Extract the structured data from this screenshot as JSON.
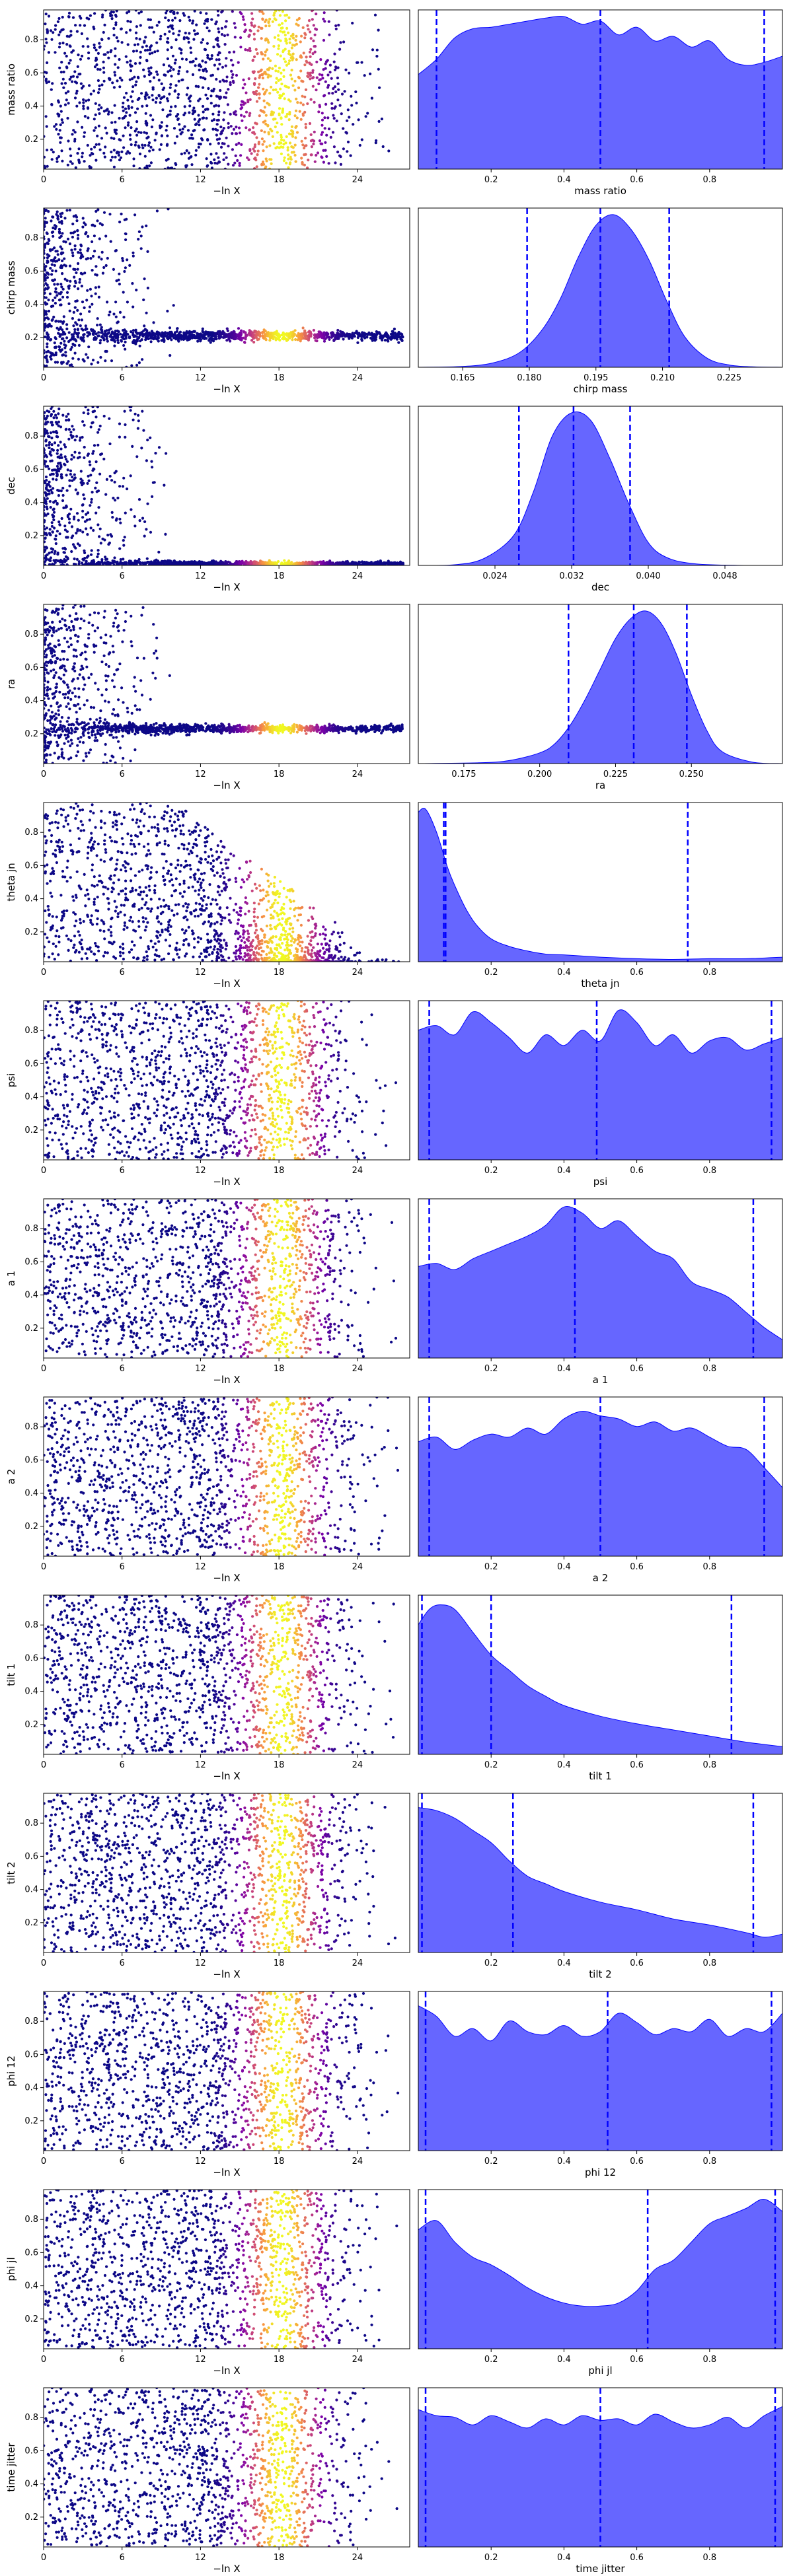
{
  "figure": {
    "trace_xlabel": "−ln X",
    "trace_xticks": [
      "0",
      "6",
      "12",
      "18",
      "24"
    ],
    "trace_yticks": [
      "0.2",
      "0.4",
      "0.6",
      "0.8"
    ],
    "colormap": [
      "#0d0887",
      "#7e03a8",
      "#cc4778",
      "#f89540",
      "#f0f921"
    ],
    "fill_color": "#6666ff",
    "edge_color": "#0000ff",
    "quantile_line_color": "#0000ff"
  },
  "chart_data": [
    {
      "type": "scatter+kde",
      "param": "mass ratio",
      "trace_style": "uniform",
      "kde_xlabel": "mass ratio",
      "kde_xlim": [
        0,
        1
      ],
      "kde_xticks": [
        "0.2",
        "0.4",
        "0.6",
        "0.8"
      ],
      "kde_x": [
        0,
        0.05,
        0.1,
        0.15,
        0.2,
        0.25,
        0.3,
        0.35,
        0.4,
        0.45,
        0.5,
        0.55,
        0.6,
        0.65,
        0.7,
        0.75,
        0.8,
        0.85,
        0.9,
        0.95,
        1.0
      ],
      "kde_y": [
        0.62,
        0.72,
        0.86,
        0.92,
        0.93,
        0.95,
        0.97,
        0.99,
        1.0,
        0.95,
        0.97,
        0.88,
        0.93,
        0.84,
        0.87,
        0.8,
        0.84,
        0.72,
        0.68,
        0.7,
        0.74
      ],
      "quantiles": [
        0.05,
        0.5,
        0.95
      ]
    },
    {
      "type": "scatter+kde",
      "param": "chirp mass",
      "trace_style": "converge",
      "trace_center": 0.21,
      "trace_width": 0.04,
      "kde_xlabel": "chirp mass",
      "kde_xlim": [
        0.155,
        0.237
      ],
      "kde_xticks": [
        "0.165",
        "0.180",
        "0.195",
        "0.210",
        "0.225"
      ],
      "kde_x": [
        0.155,
        0.165,
        0.172,
        0.178,
        0.183,
        0.187,
        0.191,
        0.195,
        0.199,
        0.203,
        0.207,
        0.211,
        0.215,
        0.22,
        0.225,
        0.23,
        0.237
      ],
      "kde_y": [
        0,
        0.005,
        0.03,
        0.1,
        0.25,
        0.45,
        0.72,
        0.93,
        1.0,
        0.9,
        0.7,
        0.43,
        0.2,
        0.06,
        0.015,
        0.003,
        0
      ],
      "quantiles": [
        0.1795,
        0.196,
        0.2115
      ]
    },
    {
      "type": "scatter+kde",
      "param": "dec",
      "trace_style": "converge",
      "trace_center": 0.03,
      "trace_width": 0.02,
      "kde_xlabel": "dec",
      "kde_xlim": [
        0.016,
        0.054
      ],
      "kde_xticks": [
        "0.024",
        "0.032",
        "0.040",
        "0.048"
      ],
      "kde_x": [
        0.016,
        0.02,
        0.023,
        0.026,
        0.028,
        0.03,
        0.032,
        0.034,
        0.036,
        0.038,
        0.04,
        0.042,
        0.045,
        0.05,
        0.054
      ],
      "kde_y": [
        0,
        0.005,
        0.05,
        0.2,
        0.48,
        0.85,
        1.0,
        0.95,
        0.7,
        0.4,
        0.15,
        0.05,
        0.01,
        0,
        0
      ],
      "quantiles": [
        0.0265,
        0.0322,
        0.0381
      ]
    },
    {
      "type": "scatter+kde",
      "param": "ra",
      "trace_style": "converge",
      "trace_center": 0.23,
      "trace_width": 0.03,
      "kde_xlabel": "ra",
      "kde_xlim": [
        0.16,
        0.28
      ],
      "kde_xticks": [
        "0.175",
        "0.200",
        "0.225",
        "0.250"
      ],
      "kde_x": [
        0.16,
        0.18,
        0.19,
        0.2,
        0.205,
        0.21,
        0.215,
        0.22,
        0.225,
        0.23,
        0.235,
        0.24,
        0.245,
        0.25,
        0.255,
        0.26,
        0.27,
        0.28
      ],
      "kde_y": [
        0,
        0.005,
        0.02,
        0.07,
        0.13,
        0.25,
        0.42,
        0.62,
        0.82,
        0.95,
        1.0,
        0.92,
        0.72,
        0.45,
        0.22,
        0.08,
        0.01,
        0
      ],
      "quantiles": [
        0.2095,
        0.231,
        0.2485
      ]
    },
    {
      "type": "scatter+kde",
      "param": "theta jn",
      "trace_style": "skewed",
      "kde_xlabel": "theta jn",
      "kde_xlim": [
        0,
        1
      ],
      "kde_xticks": [
        "0.2",
        "0.4",
        "0.6",
        "0.8"
      ],
      "kde_x": [
        0,
        0.02,
        0.05,
        0.08,
        0.1,
        0.13,
        0.16,
        0.2,
        0.25,
        0.3,
        0.35,
        0.4,
        0.5,
        0.6,
        0.7,
        0.8,
        0.9,
        1.0
      ],
      "kde_y": [
        0.98,
        1.0,
        0.85,
        0.62,
        0.5,
        0.35,
        0.24,
        0.15,
        0.1,
        0.07,
        0.05,
        0.045,
        0.03,
        0.02,
        0.015,
        0.02,
        0.02,
        0.03
      ],
      "quantiles": [
        0.07,
        0.075,
        0.74
      ]
    },
    {
      "type": "scatter+kde",
      "param": "psi",
      "trace_style": "uniform",
      "kde_xlabel": "psi",
      "kde_xlim": [
        0,
        1
      ],
      "kde_xticks": [
        "0.2",
        "0.4",
        "0.6",
        "0.8"
      ],
      "kde_x": [
        0,
        0.05,
        0.1,
        0.15,
        0.2,
        0.25,
        0.3,
        0.35,
        0.4,
        0.45,
        0.5,
        0.55,
        0.6,
        0.65,
        0.7,
        0.75,
        0.8,
        0.85,
        0.9,
        0.95,
        1.0
      ],
      "kde_y": [
        0.85,
        0.88,
        0.82,
        0.97,
        0.9,
        0.8,
        0.7,
        0.82,
        0.75,
        0.85,
        0.78,
        0.98,
        0.9,
        0.75,
        0.82,
        0.7,
        0.78,
        0.8,
        0.72,
        0.76,
        0.8
      ],
      "quantiles": [
        0.03,
        0.49,
        0.97
      ]
    },
    {
      "type": "scatter+kde",
      "param": "a 1",
      "trace_style": "uniform",
      "kde_xlabel": "a 1",
      "kde_xlim": [
        0,
        1
      ],
      "kde_xticks": [
        "0.2",
        "0.4",
        "0.6",
        "0.8"
      ],
      "kde_x": [
        0,
        0.05,
        0.1,
        0.15,
        0.2,
        0.25,
        0.3,
        0.35,
        0.4,
        0.45,
        0.5,
        0.55,
        0.6,
        0.65,
        0.7,
        0.75,
        0.8,
        0.85,
        0.9,
        0.95,
        1.0
      ],
      "kde_y": [
        0.6,
        0.62,
        0.58,
        0.65,
        0.7,
        0.75,
        0.8,
        0.87,
        0.99,
        0.95,
        0.85,
        0.9,
        0.8,
        0.7,
        0.65,
        0.5,
        0.45,
        0.4,
        0.3,
        0.2,
        0.12
      ],
      "quantiles": [
        0.03,
        0.43,
        0.92
      ]
    },
    {
      "type": "scatter+kde",
      "param": "a 2",
      "trace_style": "uniform",
      "kde_xlabel": "a 2",
      "kde_xlim": [
        0,
        1
      ],
      "kde_xticks": [
        "0.2",
        "0.4",
        "0.6",
        "0.8"
      ],
      "kde_x": [
        0,
        0.05,
        0.1,
        0.15,
        0.2,
        0.25,
        0.3,
        0.35,
        0.4,
        0.45,
        0.5,
        0.55,
        0.6,
        0.65,
        0.7,
        0.75,
        0.8,
        0.85,
        0.9,
        0.95,
        1.0
      ],
      "kde_y": [
        0.75,
        0.78,
        0.7,
        0.76,
        0.8,
        0.78,
        0.84,
        0.8,
        0.9,
        0.95,
        0.92,
        0.9,
        0.85,
        0.88,
        0.82,
        0.84,
        0.78,
        0.72,
        0.7,
        0.58,
        0.45
      ],
      "quantiles": [
        0.03,
        0.5,
        0.95
      ]
    },
    {
      "type": "scatter+kde",
      "param": "tilt 1",
      "trace_style": "uniform",
      "kde_xlabel": "tilt 1",
      "kde_xlim": [
        0,
        1
      ],
      "kde_xticks": [
        "0.2",
        "0.4",
        "0.6",
        "0.8"
      ],
      "kde_x": [
        0,
        0.03,
        0.06,
        0.1,
        0.15,
        0.2,
        0.25,
        0.3,
        0.35,
        0.4,
        0.5,
        0.6,
        0.7,
        0.8,
        0.9,
        1.0
      ],
      "kde_y": [
        0.85,
        0.95,
        0.98,
        0.95,
        0.8,
        0.65,
        0.55,
        0.45,
        0.38,
        0.32,
        0.25,
        0.2,
        0.16,
        0.12,
        0.08,
        0.05
      ],
      "quantiles": [
        0.01,
        0.2,
        0.86
      ]
    },
    {
      "type": "scatter+kde",
      "param": "tilt 2",
      "trace_style": "uniform",
      "kde_xlabel": "tilt 2",
      "kde_xlim": [
        0,
        1
      ],
      "kde_xticks": [
        "0.2",
        "0.4",
        "0.6",
        "0.8"
      ],
      "kde_x": [
        0,
        0.05,
        0.1,
        0.15,
        0.2,
        0.25,
        0.3,
        0.35,
        0.4,
        0.5,
        0.6,
        0.7,
        0.8,
        0.9,
        0.95,
        1.0
      ],
      "kde_y": [
        0.95,
        0.93,
        0.88,
        0.8,
        0.72,
        0.6,
        0.5,
        0.45,
        0.4,
        0.33,
        0.28,
        0.22,
        0.18,
        0.13,
        0.1,
        0.12
      ],
      "quantiles": [
        0.01,
        0.26,
        0.92
      ]
    },
    {
      "type": "scatter+kde",
      "param": "phi 12",
      "trace_style": "uniform",
      "kde_xlabel": "phi 12",
      "kde_xlim": [
        0,
        1
      ],
      "kde_xticks": [
        "0.2",
        "0.4",
        "0.6",
        "0.8"
      ],
      "kde_x": [
        0,
        0.05,
        0.1,
        0.15,
        0.2,
        0.25,
        0.3,
        0.35,
        0.4,
        0.45,
        0.5,
        0.55,
        0.6,
        0.65,
        0.7,
        0.75,
        0.8,
        0.85,
        0.9,
        0.95,
        1.0
      ],
      "kde_y": [
        0.95,
        0.88,
        0.75,
        0.8,
        0.72,
        0.85,
        0.78,
        0.76,
        0.82,
        0.75,
        0.78,
        0.9,
        0.84,
        0.76,
        0.8,
        0.78,
        0.86,
        0.75,
        0.8,
        0.78,
        0.9
      ],
      "quantiles": [
        0.02,
        0.52,
        0.97
      ]
    },
    {
      "type": "scatter+kde",
      "param": "phi jl",
      "trace_style": "uniform",
      "kde_xlabel": "phi jl",
      "kde_xlim": [
        0,
        1
      ],
      "kde_xticks": [
        "0.2",
        "0.4",
        "0.6",
        "0.8"
      ],
      "kde_x": [
        0,
        0.05,
        0.1,
        0.15,
        0.2,
        0.25,
        0.3,
        0.35,
        0.4,
        0.45,
        0.5,
        0.55,
        0.6,
        0.65,
        0.7,
        0.75,
        0.8,
        0.85,
        0.9,
        0.95,
        1.0
      ],
      "kde_y": [
        0.78,
        0.84,
        0.7,
        0.6,
        0.55,
        0.48,
        0.4,
        0.34,
        0.3,
        0.28,
        0.28,
        0.3,
        0.38,
        0.52,
        0.58,
        0.7,
        0.82,
        0.87,
        0.92,
        0.98,
        0.9
      ],
      "quantiles": [
        0.02,
        0.63,
        0.98
      ]
    },
    {
      "type": "scatter+kde",
      "param": "time jitter",
      "trace_style": "uniform",
      "kde_xlabel": "time jitter",
      "kde_xlim": [
        0,
        1
      ],
      "kde_xticks": [
        "0.2",
        "0.4",
        "0.6",
        "0.8"
      ],
      "kde_x": [
        0,
        0.05,
        0.1,
        0.15,
        0.2,
        0.25,
        0.3,
        0.35,
        0.4,
        0.45,
        0.5,
        0.55,
        0.6,
        0.65,
        0.7,
        0.75,
        0.8,
        0.85,
        0.9,
        0.95,
        1.0
      ],
      "kde_y": [
        0.9,
        0.86,
        0.85,
        0.8,
        0.86,
        0.82,
        0.78,
        0.84,
        0.8,
        0.86,
        0.83,
        0.84,
        0.8,
        0.87,
        0.82,
        0.78,
        0.8,
        0.85,
        0.78,
        0.86,
        0.92
      ],
      "quantiles": [
        0.02,
        0.5,
        0.98
      ]
    }
  ]
}
